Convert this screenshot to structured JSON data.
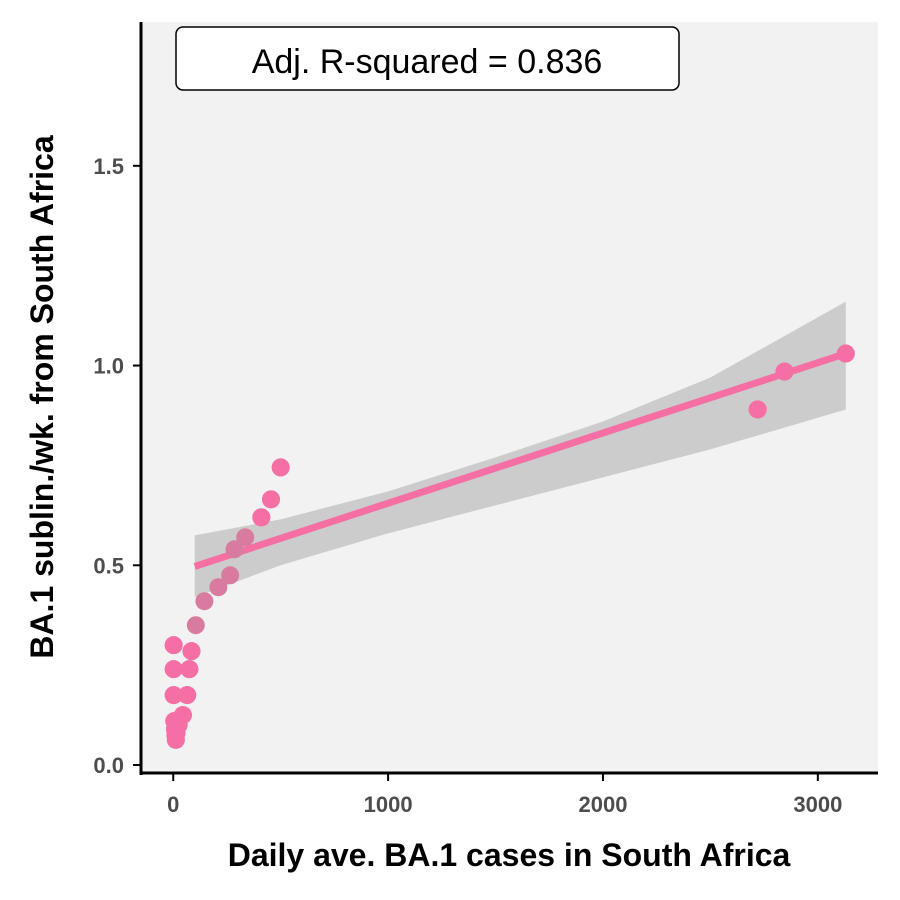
{
  "chart_data": {
    "type": "scatter",
    "xlabel": "Daily ave. BA.1 cases in South Africa",
    "ylabel": "BA.1 sublin./wk. from South Africa",
    "xlim": [
      -150,
      3280
    ],
    "ylim": [
      -0.02,
      1.86
    ],
    "x_ticks": [
      0,
      1000,
      2000,
      3000
    ],
    "y_ticks": [
      0.0,
      0.5,
      1.0,
      1.5
    ],
    "x_tick_labels": [
      "0",
      "1000",
      "2000",
      "3000"
    ],
    "y_tick_labels": [
      "0.0",
      "0.5",
      "1.0",
      "1.5"
    ],
    "annotation": "Adj. R-squared = 0.836",
    "grid": false,
    "colors": {
      "panel_background": "#f2f2f2",
      "points": "#f56fa4",
      "points_overlap": "#d97aa0",
      "fit_line": "#f56fa4",
      "confidence_band": "#cccccc"
    },
    "series": [
      {
        "points": [
          {
            "x": 2,
            "y": 0.3
          },
          {
            "x": 2,
            "y": 0.24
          },
          {
            "x": 2,
            "y": 0.175
          },
          {
            "x": 5,
            "y": 0.11
          },
          {
            "x": 8,
            "y": 0.09
          },
          {
            "x": 10,
            "y": 0.075
          },
          {
            "x": 12,
            "y": 0.063
          },
          {
            "x": 15,
            "y": 0.08
          },
          {
            "x": 25,
            "y": 0.1
          },
          {
            "x": 45,
            "y": 0.125
          },
          {
            "x": 65,
            "y": 0.175
          },
          {
            "x": 75,
            "y": 0.24
          },
          {
            "x": 85,
            "y": 0.285
          },
          {
            "x": 105,
            "y": 0.35
          },
          {
            "x": 145,
            "y": 0.41
          },
          {
            "x": 210,
            "y": 0.445
          },
          {
            "x": 265,
            "y": 0.475
          },
          {
            "x": 285,
            "y": 0.54
          },
          {
            "x": 335,
            "y": 0.57
          },
          {
            "x": 410,
            "y": 0.62
          },
          {
            "x": 455,
            "y": 0.665
          },
          {
            "x": 500,
            "y": 0.745
          },
          {
            "x": 2720,
            "y": 0.89
          },
          {
            "x": 2845,
            "y": 0.985
          },
          {
            "x": 3130,
            "y": 1.03
          }
        ]
      }
    ],
    "fit": {
      "x": [
        100,
        3130
      ],
      "y": [
        0.497,
        1.03
      ],
      "band": {
        "x": [
          100,
          500,
          1000,
          1500,
          2000,
          2500,
          3130
        ],
        "lower": [
          0.42,
          0.5,
          0.58,
          0.65,
          0.72,
          0.79,
          0.89
        ],
        "upper": [
          0.575,
          0.615,
          0.685,
          0.77,
          0.86,
          0.97,
          1.16
        ]
      }
    }
  }
}
